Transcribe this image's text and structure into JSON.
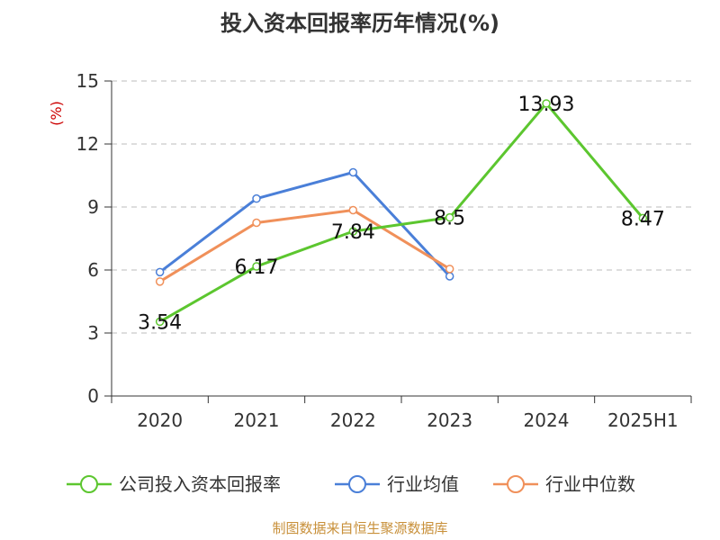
{
  "title": "投入资本回报率历年情况(%)",
  "source": "制图数据来自恒生聚源数据库",
  "chart_data": {
    "type": "line",
    "title": "投入资本回报率历年情况(%)",
    "ylabel": "(%)",
    "xlabel": "",
    "categories": [
      "2020",
      "2021",
      "2022",
      "2023",
      "2024",
      "2025H1"
    ],
    "ylim": [
      0,
      15
    ],
    "yticks": [
      "0",
      "3",
      "6",
      "9",
      "12",
      "15"
    ],
    "grid": true,
    "legend_position": "bottom",
    "series": [
      {
        "name": "公司投入资本回报率",
        "color": "#5cc62f",
        "values": [
          3.54,
          6.17,
          7.84,
          8.5,
          13.93,
          8.47
        ],
        "labels": [
          "3.54",
          "6.17",
          "7.84",
          "8.5",
          "13.93",
          "8.47"
        ]
      },
      {
        "name": "行业均值",
        "color": "#4a7fd8",
        "values": [
          5.9,
          9.4,
          10.65,
          5.7,
          null,
          null
        ]
      },
      {
        "name": "行业中位数",
        "color": "#f0905a",
        "values": [
          5.45,
          8.25,
          8.85,
          6.05,
          null,
          null
        ]
      }
    ]
  }
}
